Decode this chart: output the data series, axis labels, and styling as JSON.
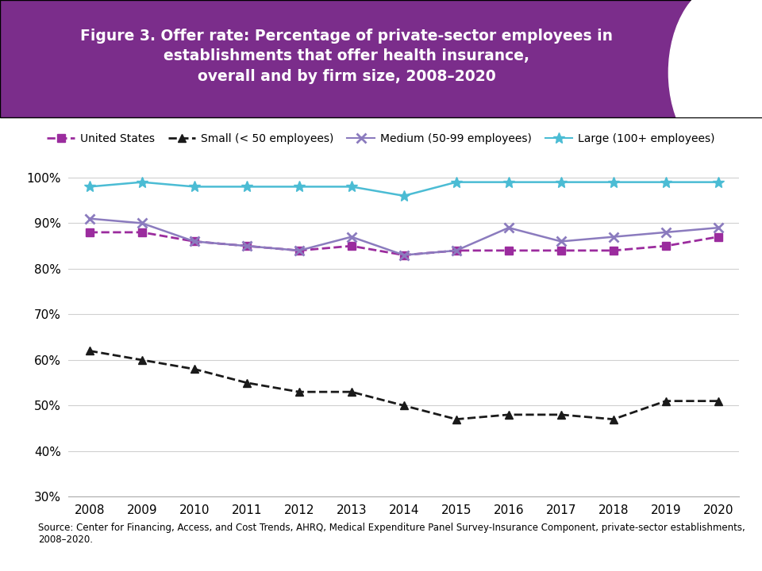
{
  "title_line1": "Figure 3. Offer rate: Percentage of private-sector employees in",
  "title_line2": "establishments that offer health insurance,",
  "title_line3": "overall and by firm size, 2008–2020",
  "header_bg_color": "#7B2D8B",
  "years": [
    2008,
    2009,
    2010,
    2011,
    2012,
    2013,
    2014,
    2015,
    2016,
    2017,
    2018,
    2019,
    2020
  ],
  "us_overall": [
    88,
    88,
    86,
    85,
    84,
    85,
    83,
    84,
    84,
    84,
    84,
    85,
    87
  ],
  "small": [
    62,
    60,
    58,
    55,
    53,
    53,
    50,
    47,
    48,
    48,
    47,
    51,
    51
  ],
  "medium": [
    91,
    90,
    86,
    85,
    84,
    87,
    83,
    84,
    89,
    86,
    87,
    88,
    89
  ],
  "large": [
    98,
    99,
    98,
    98,
    98,
    98,
    96,
    99,
    99,
    99,
    99,
    99,
    99
  ],
  "us_color": "#9B2C9E",
  "small_color": "#1a1a1a",
  "medium_color": "#8B7BBE",
  "large_color": "#4BBCD4",
  "ylim": [
    30,
    102
  ],
  "yticks": [
    30,
    40,
    50,
    60,
    70,
    80,
    90,
    100
  ],
  "source_text": "Source: Center for Financing, Access, and Cost Trends, AHRQ, Medical Expenditure Panel Survey-Insurance Component, private-sector establishments,\n2008–2020.",
  "legend_labels": [
    "United States",
    "Small (< 50 employees)",
    "Medium (50-99 employees)",
    "Large (100+ employees)"
  ]
}
